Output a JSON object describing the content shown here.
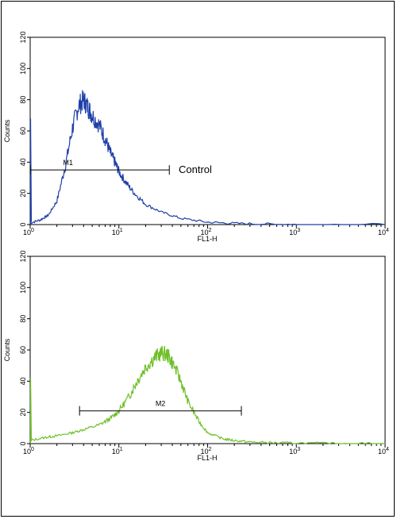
{
  "chart_data": [
    {
      "type": "line",
      "panel": "top",
      "xlabel": "FL1-H",
      "ylabel": "Counts",
      "x_scale": "log",
      "xlim": [
        1,
        10000
      ],
      "ylim": [
        0,
        120
      ],
      "y_ticks": [
        "0",
        "20",
        "40",
        "60",
        "80",
        "100",
        "120"
      ],
      "x_ticks": [
        {
          "base": "10",
          "exp": "0"
        },
        {
          "base": "10",
          "exp": "1"
        },
        {
          "base": "10",
          "exp": "2"
        },
        {
          "base": "10",
          "exp": "3"
        },
        {
          "base": "10",
          "exp": "4"
        }
      ],
      "series": [
        {
          "color": "#1f3fa8",
          "x": [
            1.0,
            1.3,
            1.6,
            2.0,
            2.5,
            3.0,
            3.5,
            4.0,
            4.5,
            5.0,
            6.0,
            7.0,
            8.0,
            9.0,
            10.0,
            12.0,
            15.0,
            20.0,
            30.0,
            50.0,
            100.0,
            200.0,
            500.0,
            1000.0,
            10000.0
          ],
          "values": [
            1,
            3,
            6,
            15,
            38,
            62,
            76,
            80,
            75,
            70,
            64,
            55,
            46,
            40,
            34,
            27,
            20,
            13,
            8,
            4,
            1.5,
            0.8,
            0.3,
            0,
            0
          ]
        }
      ],
      "gate": {
        "label": "M1",
        "x_start": 1.0,
        "x_end": 37.0,
        "y": 35
      },
      "annotation": "Control",
      "axis_spike_y": 68
    },
    {
      "type": "line",
      "panel": "bottom",
      "xlabel": "FL1-H",
      "ylabel": "Counts",
      "x_scale": "log",
      "xlim": [
        1,
        10000
      ],
      "ylim": [
        0,
        120
      ],
      "y_ticks": [
        "0",
        "20",
        "40",
        "60",
        "80",
        "100",
        "120"
      ],
      "x_ticks": [
        {
          "base": "10",
          "exp": "0"
        },
        {
          "base": "10",
          "exp": "1"
        },
        {
          "base": "10",
          "exp": "2"
        },
        {
          "base": "10",
          "exp": "3"
        },
        {
          "base": "10",
          "exp": "4"
        }
      ],
      "series": [
        {
          "color": "#6fbf2a",
          "x": [
            1.0,
            1.5,
            2.0,
            3.0,
            4.0,
            6.0,
            8.0,
            10.0,
            13.0,
            16.0,
            20.0,
            25.0,
            30.0,
            35.0,
            40.0,
            50.0,
            60.0,
            80.0,
            100.0,
            150.0,
            200.0,
            300.0,
            500.0,
            1000.0,
            3000.0,
            10000.0
          ],
          "values": [
            2,
            4,
            5,
            7,
            9,
            12,
            16,
            21,
            30,
            40,
            49,
            55,
            58,
            57,
            52,
            40,
            27,
            14,
            7,
            3,
            2,
            1,
            0.6,
            0.3,
            0.1,
            0
          ]
        }
      ],
      "gate": {
        "label": "M2",
        "x_start": 3.6,
        "x_end": 240.0,
        "y": 21
      },
      "axis_spike_y": 42
    }
  ]
}
